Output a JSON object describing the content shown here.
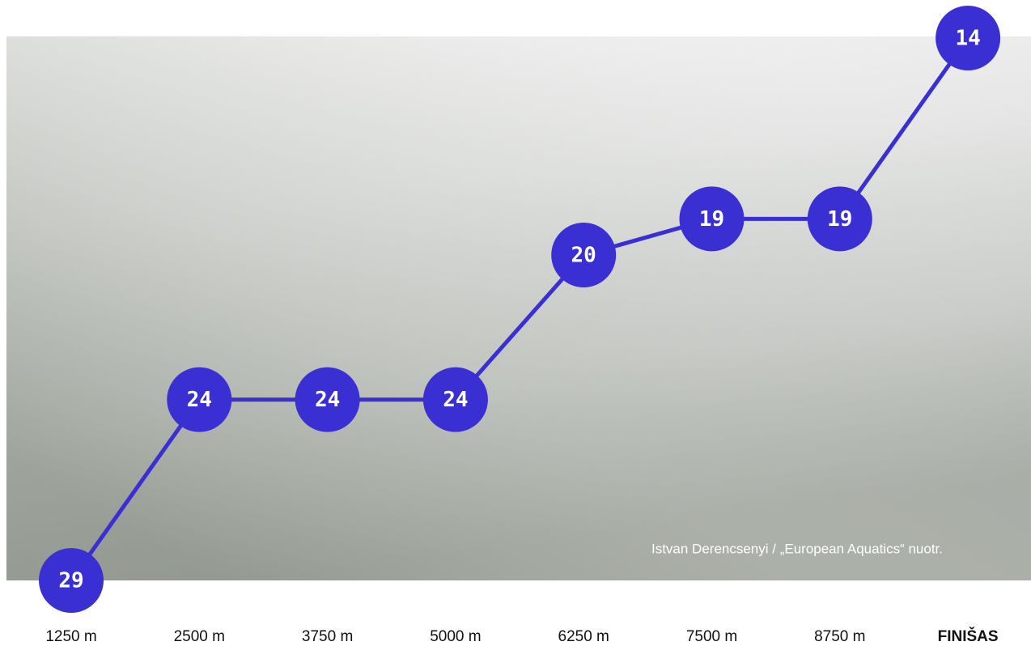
{
  "chart_data": {
    "type": "line",
    "categories": [
      "1250 m",
      "2500 m",
      "3750 m",
      "5000 m",
      "6250 m",
      "7500 m",
      "8750 m",
      "FINIŠAS"
    ],
    "values": [
      29,
      24,
      24,
      24,
      20,
      19,
      19,
      14
    ],
    "color": "#3a2fd3",
    "ylim": [
      29,
      14
    ],
    "annotation": "Istvan Derencsenyi / „European Aquatics“ nuotr."
  }
}
